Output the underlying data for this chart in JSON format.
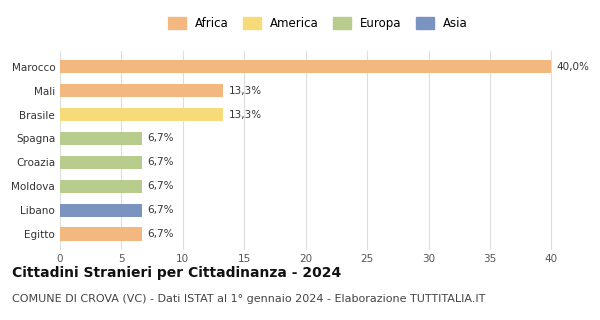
{
  "categories": [
    "Egitto",
    "Libano",
    "Moldova",
    "Croazia",
    "Spagna",
    "Brasile",
    "Mali",
    "Marocco"
  ],
  "values": [
    6.7,
    6.7,
    6.7,
    6.7,
    6.7,
    13.3,
    13.3,
    40.0
  ],
  "colors": [
    "#f2b880",
    "#7a93c0",
    "#b8cc8e",
    "#b8cc8e",
    "#b8cc8e",
    "#f5db7a",
    "#f2b880",
    "#f2b880"
  ],
  "labels": [
    "6,7%",
    "6,7%",
    "6,7%",
    "6,7%",
    "6,7%",
    "13,3%",
    "13,3%",
    "40,0%"
  ],
  "legend_items": [
    {
      "label": "Africa",
      "color": "#f2b880"
    },
    {
      "label": "America",
      "color": "#f5db7a"
    },
    {
      "label": "Europa",
      "color": "#b8cc8e"
    },
    {
      "label": "Asia",
      "color": "#7a93c0"
    }
  ],
  "xlim": [
    0,
    42
  ],
  "xticks": [
    0,
    5,
    10,
    15,
    20,
    25,
    30,
    35,
    40
  ],
  "title": "Cittadini Stranieri per Cittadinanza - 2024",
  "subtitle": "COMUNE DI CROVA (VC) - Dati ISTAT al 1° gennaio 2024 - Elaborazione TUTTITALIA.IT",
  "title_fontsize": 10,
  "subtitle_fontsize": 8,
  "background_color": "#ffffff",
  "bar_height": 0.55,
  "label_fontsize": 7.5,
  "tick_fontsize": 7.5,
  "ylabel_fontsize": 7.5
}
